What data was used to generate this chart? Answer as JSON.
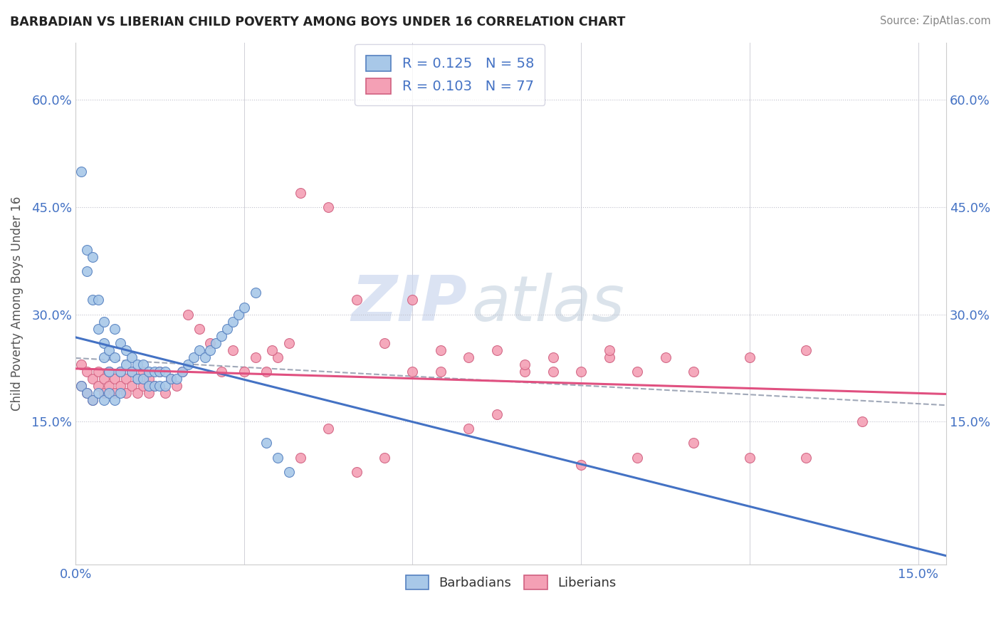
{
  "title": "BARBADIAN VS LIBERIAN CHILD POVERTY AMONG BOYS UNDER 16 CORRELATION CHART",
  "source": "Source: ZipAtlas.com",
  "ylabel": "Child Poverty Among Boys Under 16",
  "ytick_values": [
    0.15,
    0.3,
    0.45,
    0.6
  ],
  "ytick_labels": [
    "15.0%",
    "30.0%",
    "45.0%",
    "60.0%"
  ],
  "xlim": [
    0.0,
    0.155
  ],
  "ylim": [
    -0.05,
    0.68
  ],
  "barbadian_color": "#a8c8e8",
  "liberian_color": "#f4a0b5",
  "trendline_barbadian_color": "#4472c4",
  "trendline_liberian_color": "#e05080",
  "trendline_dashed_color": "#a0a8b8",
  "watermark_color": "#ccd8ee",
  "legend_r1_label": "R = 0.125   N = 58",
  "legend_r2_label": "R = 0.103   N = 77",
  "bottom_legend": [
    "Barbadians",
    "Liberians"
  ],
  "barbadian_x": [
    0.001,
    0.002,
    0.002,
    0.003,
    0.003,
    0.004,
    0.004,
    0.005,
    0.005,
    0.005,
    0.006,
    0.006,
    0.007,
    0.007,
    0.008,
    0.008,
    0.009,
    0.009,
    0.01,
    0.01,
    0.011,
    0.011,
    0.012,
    0.012,
    0.013,
    0.013,
    0.014,
    0.014,
    0.015,
    0.015,
    0.016,
    0.016,
    0.017,
    0.018,
    0.019,
    0.02,
    0.021,
    0.022,
    0.023,
    0.024,
    0.025,
    0.026,
    0.027,
    0.028,
    0.029,
    0.03,
    0.032,
    0.034,
    0.036,
    0.038,
    0.001,
    0.002,
    0.003,
    0.004,
    0.005,
    0.006,
    0.007,
    0.008
  ],
  "barbadian_y": [
    0.5,
    0.39,
    0.36,
    0.32,
    0.38,
    0.32,
    0.28,
    0.29,
    0.26,
    0.24,
    0.25,
    0.22,
    0.28,
    0.24,
    0.26,
    0.22,
    0.25,
    0.23,
    0.24,
    0.22,
    0.23,
    0.21,
    0.23,
    0.21,
    0.22,
    0.2,
    0.22,
    0.2,
    0.22,
    0.2,
    0.22,
    0.2,
    0.21,
    0.21,
    0.22,
    0.23,
    0.24,
    0.25,
    0.24,
    0.25,
    0.26,
    0.27,
    0.28,
    0.29,
    0.3,
    0.31,
    0.33,
    0.12,
    0.1,
    0.08,
    0.2,
    0.19,
    0.18,
    0.19,
    0.18,
    0.19,
    0.18,
    0.19
  ],
  "liberian_x": [
    0.001,
    0.001,
    0.002,
    0.002,
    0.003,
    0.003,
    0.004,
    0.004,
    0.005,
    0.005,
    0.006,
    0.006,
    0.007,
    0.007,
    0.008,
    0.008,
    0.009,
    0.009,
    0.01,
    0.01,
    0.011,
    0.011,
    0.012,
    0.012,
    0.013,
    0.013,
    0.014,
    0.015,
    0.016,
    0.017,
    0.018,
    0.019,
    0.02,
    0.022,
    0.024,
    0.026,
    0.028,
    0.03,
    0.032,
    0.034,
    0.036,
    0.038,
    0.04,
    0.045,
    0.05,
    0.055,
    0.06,
    0.065,
    0.07,
    0.075,
    0.08,
    0.085,
    0.09,
    0.095,
    0.1,
    0.105,
    0.11,
    0.12,
    0.13,
    0.14,
    0.04,
    0.05,
    0.06,
    0.07,
    0.08,
    0.09,
    0.1,
    0.11,
    0.12,
    0.13,
    0.035,
    0.045,
    0.055,
    0.065,
    0.075,
    0.085,
    0.095
  ],
  "liberian_y": [
    0.23,
    0.2,
    0.22,
    0.19,
    0.21,
    0.18,
    0.2,
    0.22,
    0.19,
    0.21,
    0.2,
    0.22,
    0.19,
    0.21,
    0.2,
    0.22,
    0.19,
    0.21,
    0.2,
    0.22,
    0.19,
    0.21,
    0.2,
    0.22,
    0.19,
    0.21,
    0.2,
    0.22,
    0.19,
    0.21,
    0.2,
    0.22,
    0.3,
    0.28,
    0.26,
    0.22,
    0.25,
    0.22,
    0.24,
    0.22,
    0.24,
    0.26,
    0.47,
    0.45,
    0.32,
    0.26,
    0.32,
    0.25,
    0.14,
    0.25,
    0.22,
    0.24,
    0.22,
    0.24,
    0.22,
    0.24,
    0.22,
    0.24,
    0.25,
    0.15,
    0.1,
    0.08,
    0.22,
    0.24,
    0.23,
    0.09,
    0.1,
    0.12,
    0.1,
    0.1,
    0.25,
    0.14,
    0.1,
    0.22,
    0.16,
    0.22,
    0.25
  ]
}
